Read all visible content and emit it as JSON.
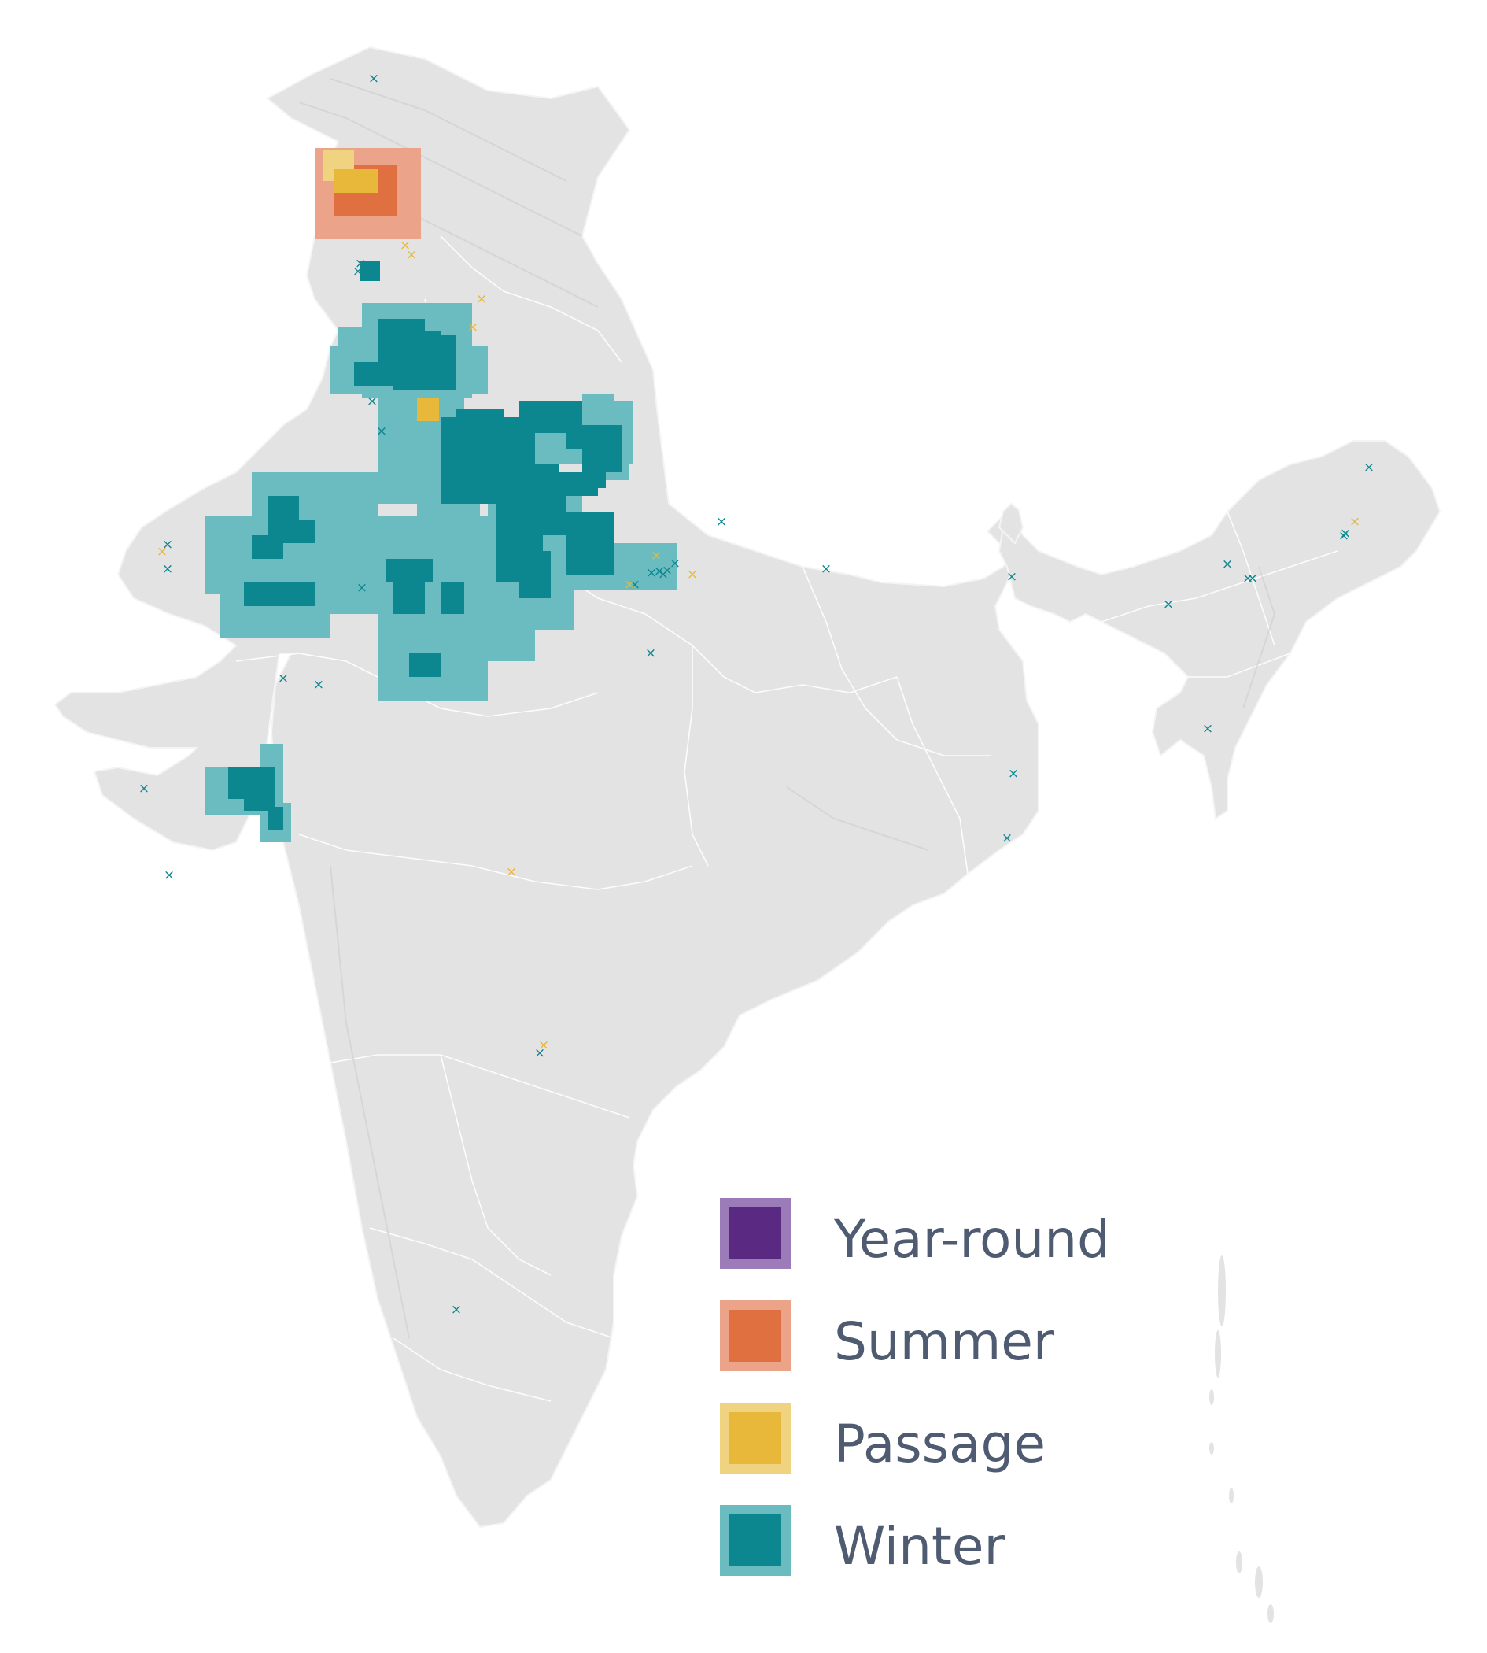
{
  "map": {
    "region": "India",
    "colors": {
      "land": "#e3e3e3",
      "land_stroke": "#ffffff",
      "relief": "#cfcfcf",
      "year_round": "#5a2a82",
      "year_round_border": "#9b7cb8",
      "summer": "#e0703f",
      "summer_border": "#eba48a",
      "passage": "#e8b83a",
      "passage_border": "#f0d380",
      "winter": "#0d878f",
      "winter_border": "#6bbcc0"
    },
    "legend": [
      {
        "key": "year_round",
        "label": "Year-round"
      },
      {
        "key": "summer",
        "label": "Summer"
      },
      {
        "key": "passage",
        "label": "Passage"
      },
      {
        "key": "winter",
        "label": "Winter"
      }
    ],
    "marker_symbol": "×"
  }
}
